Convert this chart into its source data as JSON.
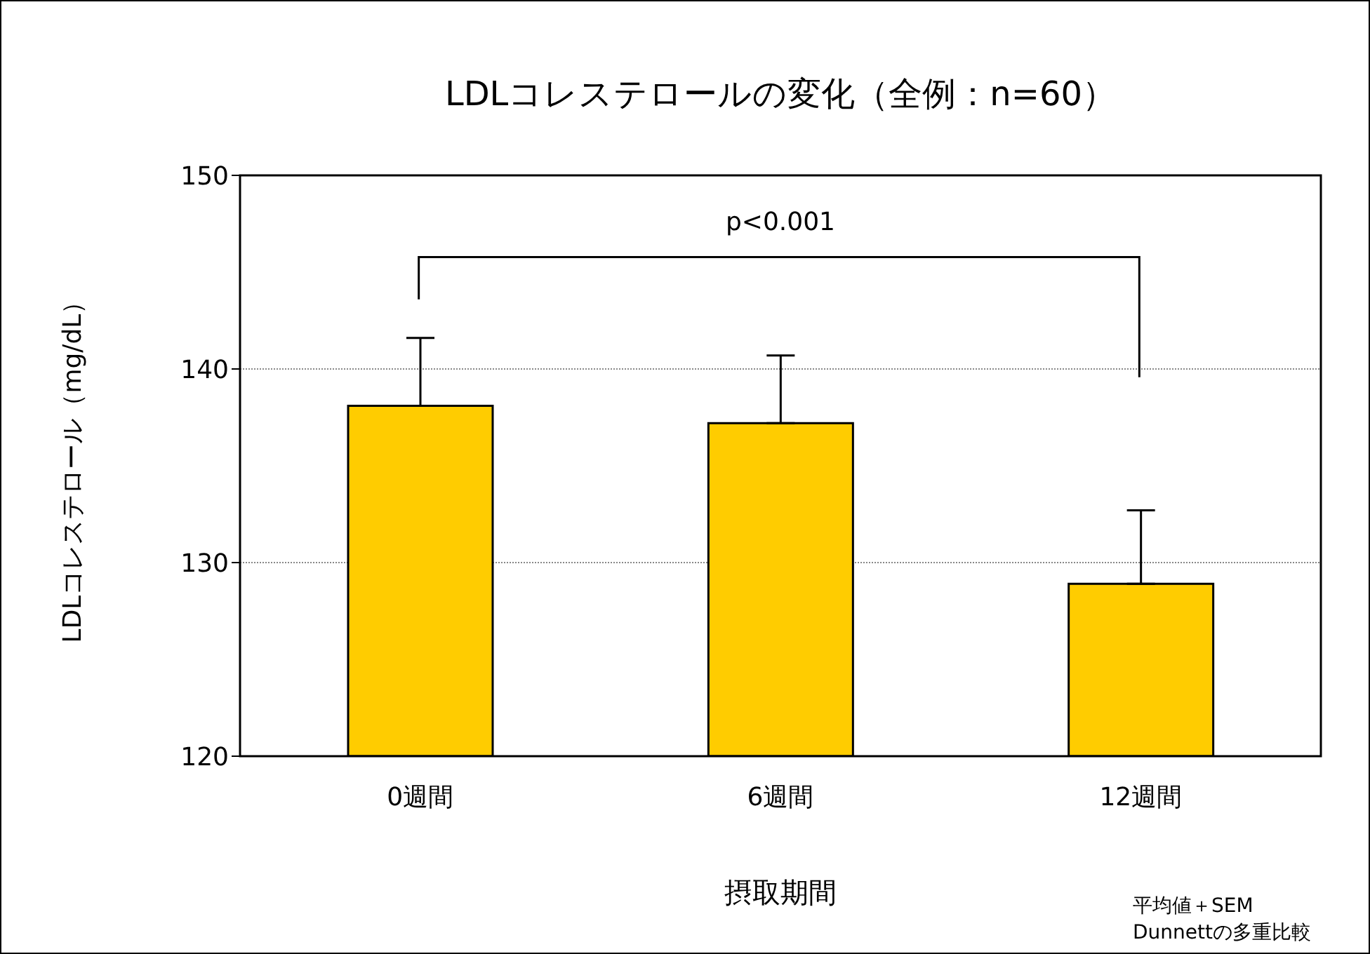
{
  "chart_data": {
    "type": "bar",
    "title": "LDLコレステロールの変化（全例：n=60）",
    "xlabel": "摂取期間",
    "ylabel": "LDLコレステロール（mg/dL）",
    "categories": [
      "0週間",
      "6週間",
      "12週間"
    ],
    "values": [
      138.1,
      137.2,
      128.9
    ],
    "errors": [
      [
        138.1,
        141.6
      ],
      [
        137.2,
        140.7
      ],
      [
        128.9,
        132.7
      ]
    ],
    "color": "#ffcc00",
    "ylim": [
      120,
      150
    ],
    "yticks": [
      120,
      130,
      140,
      150
    ],
    "grid": "y",
    "legend": false,
    "annotations": [
      "p<0.001",
      "平均値＋SEM",
      "Dunnettの多重比較"
    ]
  }
}
